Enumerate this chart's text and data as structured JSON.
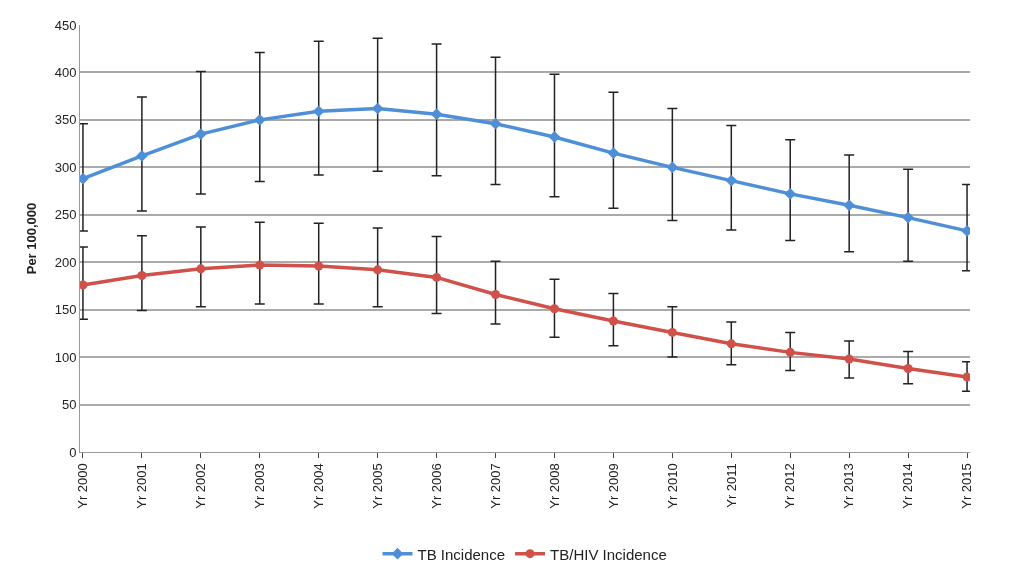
{
  "chart_data": {
    "type": "line",
    "ylabel": "Per 100,000",
    "categories": [
      "Yr 2000",
      "Yr 2001",
      "Yr 2002",
      "Yr 2003",
      "Yr 2004",
      "Yr 2005",
      "Yr 2006",
      "Yr 2007",
      "Yr 2008",
      "Yr 2009",
      "Yr 2010",
      "Yr 2011",
      "Yr 2012",
      "Yr 2013",
      "Yr 2014",
      "Yr 2015"
    ],
    "series": [
      {
        "name": "TB Incidence",
        "color": "#4f8fd8",
        "marker": "diamond",
        "values": [
          288,
          312,
          335,
          350,
          359,
          362,
          356,
          346,
          332,
          315,
          300,
          286,
          272,
          260,
          247,
          233
        ],
        "errors": [
          [
            233,
            346
          ],
          [
            254,
            374
          ],
          [
            272,
            401
          ],
          [
            285,
            421
          ],
          [
            292,
            433
          ],
          [
            296,
            436
          ],
          [
            291,
            430
          ],
          [
            282,
            416
          ],
          [
            269,
            398
          ],
          [
            257,
            379
          ],
          [
            244,
            362
          ],
          [
            234,
            344
          ],
          [
            223,
            329
          ],
          [
            211,
            313
          ],
          [
            201,
            298
          ],
          [
            191,
            282
          ]
        ]
      },
      {
        "name": "TB/HIV Incidence",
        "color": "#d0504a",
        "marker": "circle",
        "values": [
          176,
          186,
          193,
          197,
          196,
          192,
          184,
          166,
          151,
          138,
          126,
          114,
          105,
          98,
          88,
          79
        ],
        "errors": [
          [
            140,
            216
          ],
          [
            149,
            228
          ],
          [
            153,
            237
          ],
          [
            156,
            242
          ],
          [
            156,
            241
          ],
          [
            153,
            236
          ],
          [
            146,
            227
          ],
          [
            135,
            201
          ],
          [
            121,
            182
          ],
          [
            112,
            167
          ],
          [
            100,
            153
          ],
          [
            92,
            137
          ],
          [
            86,
            126
          ],
          [
            78,
            117
          ],
          [
            72,
            106
          ],
          [
            64,
            95
          ]
        ]
      }
    ],
    "ylim": [
      0,
      450
    ],
    "yticks": [
      0,
      50,
      100,
      150,
      200,
      250,
      300,
      350,
      400,
      450
    ],
    "grid": "y",
    "legend": "bottom",
    "line_style": "solid"
  }
}
